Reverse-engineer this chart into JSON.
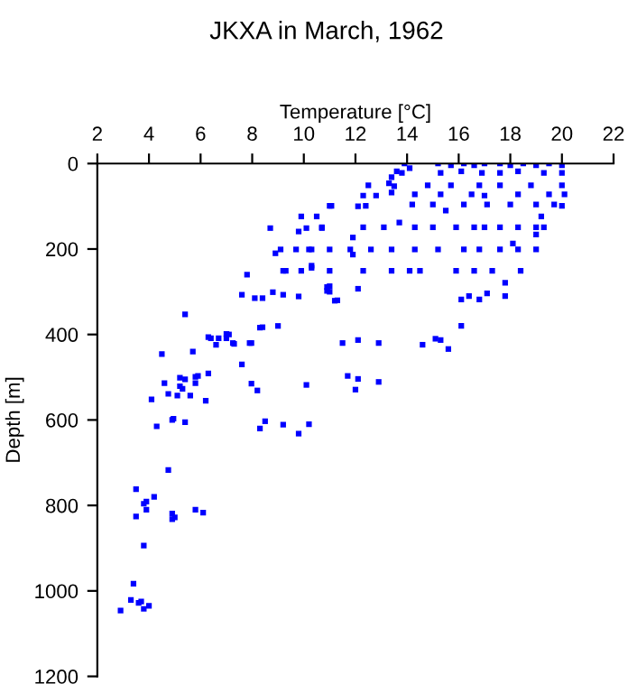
{
  "chart_data": {
    "type": "scatter",
    "title": "JKXA in March, 1962",
    "xlabel": "Temperature [°C]",
    "ylabel": "Depth [m]",
    "xlim": [
      2,
      22
    ],
    "xticks": [
      2,
      4,
      6,
      8,
      10,
      12,
      14,
      16,
      18,
      20,
      22
    ],
    "ylim": [
      1200,
      0
    ],
    "yticks": [
      0,
      200,
      400,
      600,
      800,
      1000,
      1200
    ],
    "grid": false,
    "marker": "square",
    "series": [
      {
        "color": "#0000ff",
        "x": [
          11.07,
          10.5,
          9.9,
          9.8,
          10.1,
          10.7,
          8.7,
          8.9,
          9.1,
          9.7,
          10.3,
          9.3,
          9.9,
          10.3,
          7.8,
          7.6,
          8.1,
          8.4,
          8.8,
          9.2,
          9.8,
          10.9,
          11.0,
          11.3,
          5.4,
          9.0,
          8.4,
          6.3,
          6.4,
          6.6,
          6.7,
          7.0,
          7.1,
          7.0,
          7.3,
          7.97,
          4.5,
          5.7,
          7.6,
          4.6,
          4.75,
          5.2,
          5.2,
          5.3,
          5.4,
          5.8,
          5.8,
          5.9,
          6.3,
          5.6,
          5.1,
          6.2,
          7.97,
          8.2,
          4.1,
          4.9,
          4.95,
          5.4,
          4.3,
          8.3,
          8.5,
          9.2,
          10.2,
          9.8,
          10.1,
          4.75,
          3.5,
          4.2,
          3.8,
          3.9,
          3.9,
          3.5,
          4.9,
          5.0,
          4.9,
          5.8,
          6.1,
          3.8,
          3.4,
          3.3,
          3.6,
          3.7,
          3.8,
          4.0,
          2.9,
          13.9,
          14.1,
          13.8,
          13.6,
          13.4,
          13.3,
          13.5,
          13.4,
          12.5,
          12.3,
          12.8,
          11.0,
          12.1,
          12.4,
          15.2,
          15.7,
          16.2,
          16.6,
          17.0,
          15.3,
          16.1,
          16.9,
          17.6,
          18.0,
          18.5,
          19.0,
          19.5,
          20.0,
          17.6,
          18.3,
          19.3,
          20.0,
          14.8,
          15.7,
          16.8,
          17.6,
          18.8,
          20.0,
          14.3,
          15.3,
          16.5,
          17.0,
          18.3,
          19.5,
          20.1,
          14.2,
          15.0,
          15.5,
          16.2,
          17.1,
          18.0,
          19.0,
          19.7,
          19.2,
          20.0,
          12.3,
          13.1,
          13.7,
          14.3,
          15.0,
          15.9,
          16.6,
          17.0,
          17.6,
          18.3,
          19.0,
          19.3,
          19.0,
          11.9,
          10.7,
          10.2,
          11.0,
          11.8,
          12.6,
          13.4,
          14.3,
          15.2,
          16.2,
          16.8,
          17.6,
          18.3,
          19.0,
          18.1,
          11.9,
          9.2,
          10.3,
          11.0,
          12.3,
          13.4,
          14.1,
          14.5,
          15.9,
          16.6,
          17.3,
          18.4,
          10.9,
          11.0,
          12.1,
          11.2,
          16.1,
          16.4,
          16.8,
          17.1,
          17.8,
          17.8,
          8.3,
          11.5,
          12.1,
          12.9,
          14.6,
          15.1,
          15.3,
          15.6,
          16.1,
          7.25,
          7.9,
          11.7,
          12.1,
          12.0,
          12.9
        ],
        "values": [
          99,
          124,
          124,
          159,
          151,
          151,
          151,
          210,
          201,
          201,
          201,
          251,
          251,
          239,
          260,
          307,
          315,
          315,
          301,
          307,
          311,
          298,
          287,
          320,
          353,
          380,
          383,
          406,
          409,
          424,
          409,
          409,
          400,
          399,
          422,
          420,
          446,
          440,
          470,
          514,
          539,
          501,
          521,
          527,
          505,
          499,
          514,
          497,
          491,
          543,
          543,
          555,
          515,
          531,
          552,
          600,
          597,
          605,
          615,
          620,
          603,
          611,
          610,
          632,
          518,
          717,
          762,
          780,
          796,
          791,
          810,
          826,
          819,
          828,
          832,
          810,
          817,
          894,
          983,
          1021,
          1028,
          1025,
          1042,
          1035,
          1046,
          0,
          11,
          22,
          18,
          32,
          46,
          53,
          68,
          51,
          75,
          75,
          99,
          100,
          99,
          0,
          4,
          0,
          4,
          0,
          22,
          18,
          22,
          0,
          4,
          0,
          4,
          0,
          4,
          22,
          18,
          22,
          22,
          51,
          51,
          51,
          51,
          51,
          51,
          72,
          72,
          72,
          75,
          72,
          72,
          72,
          96,
          96,
          110,
          96,
          96,
          96,
          96,
          96,
          124,
          99,
          149,
          149,
          138,
          149,
          149,
          149,
          149,
          149,
          149,
          149,
          149,
          149,
          166,
          173,
          149,
          201,
          201,
          201,
          201,
          201,
          201,
          201,
          201,
          201,
          201,
          201,
          201,
          187,
          213,
          251,
          244,
          251,
          251,
          251,
          251,
          251,
          251,
          251,
          251,
          251,
          289,
          300,
          293,
          321,
          318,
          310,
          318,
          304,
          279,
          310,
          384,
          420,
          413,
          420,
          424,
          410,
          413,
          434,
          380,
          420,
          420,
          497,
          504,
          529,
          511
        ]
      }
    ]
  }
}
